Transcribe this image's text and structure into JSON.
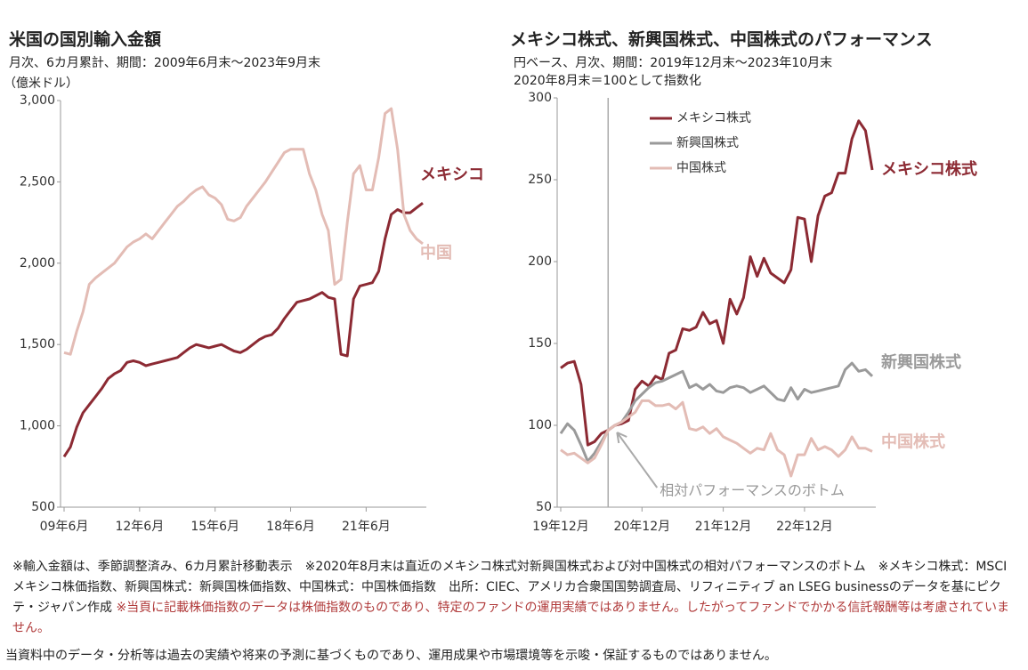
{
  "chart_data": [
    {
      "type": "line",
      "title": "米国の国別輸入金額",
      "subtitle": "月次、6カ月累計、期間：2009年6月末～2023年9月末",
      "y_label": "（億米ドル）",
      "categories": [
        "09年6月",
        null,
        null,
        null,
        null,
        null,
        null,
        null,
        null,
        null,
        null,
        null,
        "12年6月",
        null,
        null,
        null,
        null,
        null,
        null,
        null,
        null,
        null,
        null,
        null,
        "15年6月",
        null,
        null,
        null,
        null,
        null,
        null,
        null,
        null,
        null,
        null,
        null,
        "18年6月",
        null,
        null,
        null,
        null,
        null,
        null,
        null,
        null,
        null,
        null,
        null,
        "21年6月",
        null,
        null,
        null,
        null,
        null,
        null,
        null,
        null,
        null
      ],
      "ylim": [
        500,
        3000
      ],
      "yticks": [
        500,
        {
          "value": 1000,
          "label": "1,000"
        },
        {
          "value": 1500,
          "label": "1,500"
        },
        {
          "value": 2000,
          "label": "2,000"
        },
        {
          "value": 2500,
          "label": "2,500"
        },
        {
          "value": 3000,
          "label": "3,000"
        }
      ],
      "grid": false,
      "legend": "end labels",
      "series": [
        {
          "name": "メキシコ",
          "color": "#8c2a33",
          "values": [
            810,
            870,
            990,
            1080,
            1130,
            1180,
            1230,
            1290,
            1320,
            1340,
            1390,
            1400,
            1390,
            1370,
            1380,
            1390,
            1400,
            1410,
            1420,
            1450,
            1480,
            1500,
            1490,
            1480,
            1490,
            1500,
            1480,
            1460,
            1450,
            1470,
            1500,
            1530,
            1550,
            1560,
            1600,
            1660,
            1710,
            1760,
            1770,
            1780,
            1800,
            1820,
            1790,
            1780,
            1440,
            1430,
            1780,
            1860,
            1870,
            1880,
            1950,
            2150,
            2300,
            2330,
            2310,
            2310,
            2340,
            2370
          ]
        },
        {
          "name": "中国",
          "color": "#e3bcb5",
          "values": [
            1450,
            1440,
            1580,
            1700,
            1870,
            1910,
            1940,
            1970,
            2000,
            2050,
            2100,
            2130,
            2150,
            2180,
            2150,
            2200,
            2250,
            2300,
            2350,
            2380,
            2420,
            2450,
            2470,
            2420,
            2400,
            2360,
            2270,
            2260,
            2280,
            2350,
            2400,
            2450,
            2500,
            2560,
            2620,
            2680,
            2700,
            2700,
            2700,
            2550,
            2450,
            2300,
            2200,
            1870,
            1900,
            2250,
            2550,
            2600,
            2450,
            2450,
            2650,
            2920,
            2950,
            2700,
            2300,
            2200,
            2150,
            2120
          ]
        }
      ]
    },
    {
      "type": "line",
      "title": "メキシコ株式、新興国株式、中国株式のパフォーマンス",
      "subtitle": "円ベース、月次、期間：2019年12月末～2023年10月末",
      "subtitle2": "2020年8月末＝100として指数化",
      "annotation": "相対パフォーマンスのボトム",
      "categories": [
        "19年12月",
        null,
        null,
        null,
        null,
        null,
        null,
        null,
        null,
        null,
        null,
        null,
        "20年12月",
        null,
        null,
        null,
        null,
        null,
        null,
        null,
        null,
        null,
        null,
        null,
        "21年12月",
        null,
        null,
        null,
        null,
        null,
        null,
        null,
        null,
        null,
        null,
        null,
        "22年12月",
        null,
        null,
        null,
        null,
        null,
        null,
        null,
        null,
        null,
        null
      ],
      "ylim": [
        50,
        300
      ],
      "yticks": [
        50,
        100,
        150,
        200,
        250,
        300
      ],
      "grid": false,
      "legend": "upper left",
      "series": [
        {
          "name": "メキシコ株式",
          "color": "#8c2a33",
          "values": [
            135,
            138,
            139,
            125,
            88,
            90,
            95,
            97,
            100,
            101,
            103,
            122,
            127,
            124,
            130,
            128,
            144,
            146,
            159,
            158,
            160,
            169,
            162,
            164,
            150,
            177,
            168,
            178,
            203,
            191,
            202,
            193,
            190,
            187,
            195,
            227,
            226,
            200,
            228,
            240,
            242,
            254,
            254,
            275,
            286,
            280,
            256
          ]
        },
        {
          "name": "新興国株式",
          "color": "#9a9a9a",
          "values": [
            95,
            101,
            97,
            88,
            78,
            83,
            90,
            97,
            100,
            102,
            108,
            115,
            119,
            123,
            126,
            127,
            129,
            131,
            133,
            123,
            125,
            122,
            125,
            121,
            120,
            123,
            124,
            123,
            120,
            122,
            124,
            120,
            116,
            115,
            123,
            116,
            122,
            120,
            121,
            122,
            123,
            124,
            134,
            138,
            133,
            134,
            130
          ]
        },
        {
          "name": "中国株式",
          "color": "#e3bcb5",
          "values": [
            85,
            82,
            83,
            80,
            77,
            80,
            88,
            97,
            100,
            102,
            105,
            108,
            115,
            115,
            112,
            112,
            113,
            110,
            114,
            98,
            97,
            99,
            95,
            98,
            93,
            91,
            89,
            86,
            83,
            86,
            85,
            95,
            85,
            82,
            69,
            82,
            82,
            92,
            85,
            87,
            85,
            81,
            85,
            93,
            86,
            86,
            84
          ]
        }
      ]
    }
  ],
  "notes": {
    "main": "※輸入金額は、季節調整済み、6カ月累計移動表示　※2020年8月末は直近のメキシコ株式対新興国株式および対中国株式の相対パフォーマンスのボトム　※メキシコ株式：MSCIメキシコ株価指数、新興国株式：新興国株価指数、中国株式：中国株価指数　出所：CIEC、アメリカ合衆国国勢調査局、リフィニティブ an LSEG businessのデータを基にピクテ・ジャパン作成",
    "caution": "※当頁に記載株価指数のデータは株価指数のものであり、特定のファンドの運用実績ではありません。したがってファンドでかかる信託報酬等は考慮されていません。"
  },
  "footer": "当資料中のデータ・分析等は過去の実績や将来の予測に基づくものであり、運用成果や市場環境等を示唆・保証するものではありません。"
}
